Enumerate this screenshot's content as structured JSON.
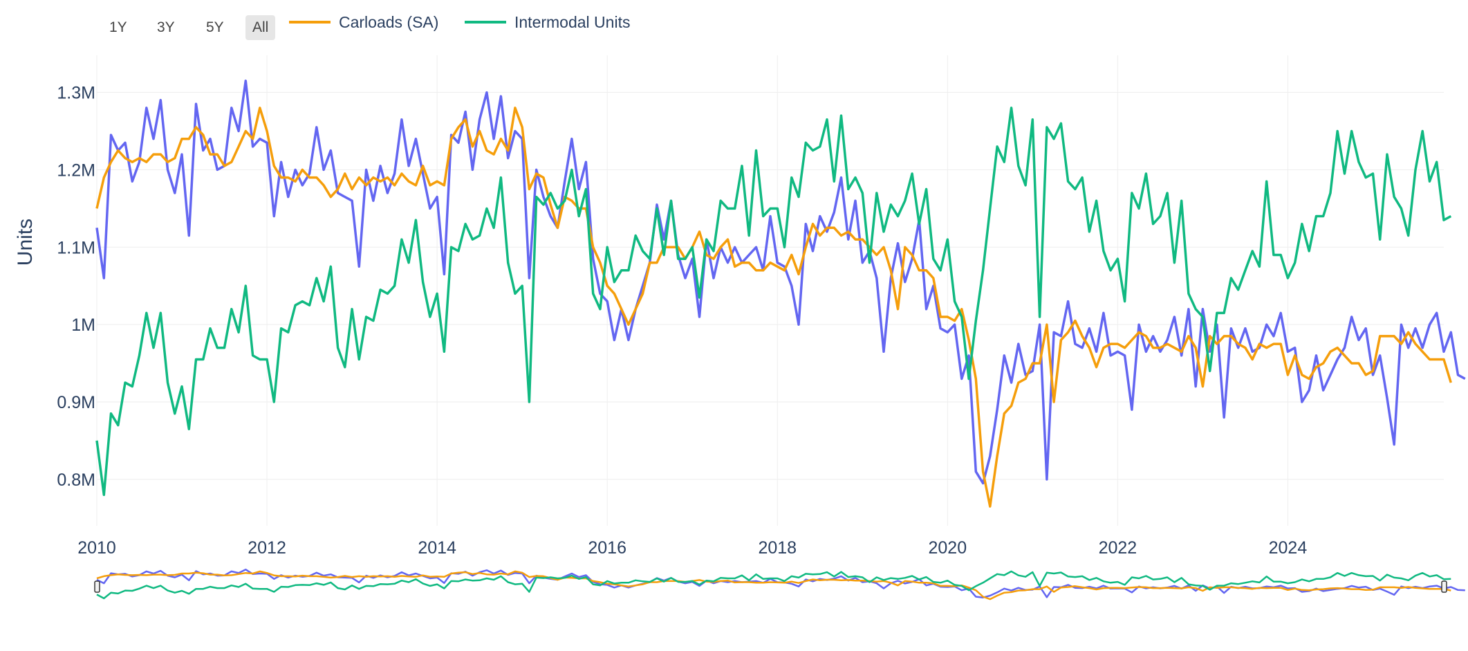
{
  "range_buttons": [
    {
      "label": "1Y",
      "active": false
    },
    {
      "label": "3Y",
      "active": false
    },
    {
      "label": "5Y",
      "active": false
    },
    {
      "label": "All",
      "active": true
    }
  ],
  "legend": [
    {
      "label": "Carloads (SA)",
      "color": "#f59e0b"
    },
    {
      "label": "Intermodal Units",
      "color": "#10b981"
    }
  ],
  "chart_data": {
    "type": "line",
    "ylabel": "Units",
    "xlabel": "",
    "grid": true,
    "legend_position": "top-left",
    "x_ticks": [
      "2010",
      "2012",
      "2014",
      "2016",
      "2018",
      "2020",
      "2022",
      "2024"
    ],
    "y_ticks": [
      "0.8M",
      "0.9M",
      "1M",
      "1.1M",
      "1.2M",
      "1.3M"
    ],
    "ylim": [
      0.74,
      1.33
    ],
    "xlim": [
      "2010-01",
      "2025-11"
    ],
    "x_start": "2010-01",
    "x_step": "1 month",
    "series": [
      {
        "name": "",
        "color": "#6366f1",
        "values": [
          1.125,
          1.06,
          1.245,
          1.225,
          1.235,
          1.185,
          1.21,
          1.28,
          1.24,
          1.29,
          1.2,
          1.17,
          1.22,
          1.115,
          1.285,
          1.225,
          1.24,
          1.2,
          1.205,
          1.28,
          1.25,
          1.315,
          1.23,
          1.24,
          1.235,
          1.14,
          1.21,
          1.165,
          1.2,
          1.18,
          1.195,
          1.255,
          1.2,
          1.225,
          1.17,
          1.165,
          1.16,
          1.075,
          1.2,
          1.16,
          1.205,
          1.17,
          1.195,
          1.265,
          1.205,
          1.24,
          1.195,
          1.15,
          1.165,
          1.065,
          1.245,
          1.235,
          1.275,
          1.2,
          1.265,
          1.3,
          1.24,
          1.295,
          1.215,
          1.25,
          1.24,
          1.06,
          1.2,
          1.165,
          1.14,
          1.125,
          1.185,
          1.24,
          1.175,
          1.21,
          1.085,
          1.04,
          1.03,
          0.98,
          1.02,
          0.98,
          1.02,
          1.05,
          1.08,
          1.155,
          1.11,
          1.16,
          1.09,
          1.06,
          1.085,
          1.01,
          1.11,
          1.06,
          1.1,
          1.08,
          1.1,
          1.08,
          1.09,
          1.1,
          1.07,
          1.14,
          1.08,
          1.075,
          1.05,
          1.0,
          1.13,
          1.095,
          1.14,
          1.12,
          1.145,
          1.19,
          1.11,
          1.16,
          1.08,
          1.095,
          1.06,
          0.965,
          1.06,
          1.105,
          1.055,
          1.085,
          1.135,
          1.02,
          1.05,
          0.995,
          0.99,
          1.0,
          0.93,
          0.96,
          0.81,
          0.795,
          0.83,
          0.89,
          0.96,
          0.925,
          0.975,
          0.935,
          0.94,
          1.0,
          0.8,
          0.99,
          0.985,
          1.03,
          0.975,
          0.97,
          0.995,
          0.965,
          1.015,
          0.96,
          0.965,
          0.96,
          0.89,
          1.0,
          0.965,
          0.985,
          0.965,
          0.98,
          1.01,
          0.96,
          1.02,
          0.92,
          1.02,
          0.965,
          1.0,
          0.88,
          0.995,
          0.97,
          0.995,
          0.965,
          0.97,
          1.0,
          0.985,
          1.015,
          0.965,
          0.97,
          0.9,
          0.915,
          0.96,
          0.915,
          0.935,
          0.955,
          0.97,
          1.01,
          0.98,
          0.995,
          0.935,
          0.96,
          0.905,
          0.845,
          1.0,
          0.97,
          0.995,
          0.97,
          1.0,
          1.015,
          0.965,
          0.99,
          0.935,
          0.93
        ]
      },
      {
        "name": "Carloads (SA)",
        "color": "#f59e0b",
        "values": [
          1.15,
          1.19,
          1.21,
          1.225,
          1.215,
          1.21,
          1.215,
          1.21,
          1.22,
          1.22,
          1.21,
          1.215,
          1.24,
          1.24,
          1.255,
          1.245,
          1.22,
          1.22,
          1.205,
          1.21,
          1.23,
          1.25,
          1.24,
          1.28,
          1.25,
          1.205,
          1.19,
          1.19,
          1.185,
          1.2,
          1.19,
          1.19,
          1.18,
          1.165,
          1.175,
          1.195,
          1.175,
          1.19,
          1.18,
          1.19,
          1.185,
          1.19,
          1.18,
          1.195,
          1.185,
          1.18,
          1.205,
          1.18,
          1.185,
          1.18,
          1.24,
          1.255,
          1.265,
          1.23,
          1.25,
          1.225,
          1.22,
          1.24,
          1.225,
          1.28,
          1.255,
          1.175,
          1.195,
          1.19,
          1.155,
          1.125,
          1.165,
          1.16,
          1.15,
          1.15,
          1.1,
          1.08,
          1.05,
          1.04,
          1.02,
          1.0,
          1.02,
          1.04,
          1.08,
          1.08,
          1.1,
          1.1,
          1.1,
          1.085,
          1.1,
          1.12,
          1.09,
          1.085,
          1.1,
          1.11,
          1.075,
          1.08,
          1.08,
          1.07,
          1.07,
          1.08,
          1.075,
          1.07,
          1.09,
          1.065,
          1.1,
          1.13,
          1.115,
          1.125,
          1.125,
          1.115,
          1.12,
          1.11,
          1.11,
          1.1,
          1.09,
          1.1,
          1.07,
          1.02,
          1.1,
          1.09,
          1.07,
          1.07,
          1.06,
          1.01,
          1.01,
          1.005,
          1.02,
          0.98,
          0.93,
          0.81,
          0.765,
          0.83,
          0.885,
          0.895,
          0.925,
          0.93,
          0.95,
          0.95,
          1.0,
          0.9,
          0.98,
          0.99,
          1.005,
          0.985,
          0.97,
          0.945,
          0.97,
          0.975,
          0.975,
          0.97,
          0.98,
          0.99,
          0.985,
          0.97,
          0.97,
          0.975,
          0.97,
          0.965,
          0.985,
          0.97,
          0.92,
          0.985,
          0.975,
          0.985,
          0.985,
          0.975,
          0.97,
          0.955,
          0.975,
          0.97,
          0.975,
          0.975,
          0.935,
          0.96,
          0.935,
          0.93,
          0.945,
          0.95,
          0.965,
          0.97,
          0.96,
          0.95,
          0.95,
          0.935,
          0.94,
          0.985,
          0.985,
          0.985,
          0.975,
          0.99,
          0.975,
          0.965,
          0.955,
          0.955,
          0.955,
          0.925
        ]
      },
      {
        "name": "Intermodal Units",
        "color": "#10b981",
        "values": [
          0.85,
          0.78,
          0.885,
          0.87,
          0.925,
          0.92,
          0.96,
          1.015,
          0.97,
          1.015,
          0.925,
          0.885,
          0.92,
          0.865,
          0.955,
          0.955,
          0.995,
          0.97,
          0.97,
          1.02,
          0.99,
          1.05,
          0.96,
          0.955,
          0.955,
          0.9,
          0.995,
          0.99,
          1.025,
          1.03,
          1.025,
          1.06,
          1.03,
          1.075,
          0.97,
          0.945,
          1.02,
          0.955,
          1.01,
          1.005,
          1.045,
          1.04,
          1.05,
          1.11,
          1.08,
          1.135,
          1.055,
          1.01,
          1.04,
          0.965,
          1.1,
          1.095,
          1.13,
          1.11,
          1.115,
          1.15,
          1.125,
          1.19,
          1.08,
          1.04,
          1.05,
          0.9,
          1.165,
          1.155,
          1.17,
          1.15,
          1.16,
          1.2,
          1.14,
          1.175,
          1.04,
          1.02,
          1.1,
          1.055,
          1.07,
          1.07,
          1.115,
          1.095,
          1.085,
          1.15,
          1.09,
          1.16,
          1.085,
          1.085,
          1.1,
          1.035,
          1.11,
          1.095,
          1.16,
          1.15,
          1.15,
          1.205,
          1.115,
          1.225,
          1.14,
          1.15,
          1.15,
          1.1,
          1.19,
          1.165,
          1.235,
          1.225,
          1.23,
          1.265,
          1.185,
          1.27,
          1.175,
          1.19,
          1.17,
          1.08,
          1.17,
          1.12,
          1.155,
          1.14,
          1.16,
          1.195,
          1.13,
          1.175,
          1.085,
          1.07,
          1.11,
          1.03,
          1.01,
          0.93,
          1.005,
          1.07,
          1.15,
          1.23,
          1.21,
          1.28,
          1.205,
          1.18,
          1.265,
          1.01,
          1.255,
          1.24,
          1.26,
          1.185,
          1.175,
          1.19,
          1.12,
          1.16,
          1.095,
          1.07,
          1.085,
          1.03,
          1.17,
          1.15,
          1.195,
          1.13,
          1.14,
          1.17,
          1.08,
          1.16,
          1.04,
          1.02,
          1.01,
          0.94,
          1.015,
          1.015,
          1.06,
          1.045,
          1.07,
          1.095,
          1.075,
          1.185,
          1.09,
          1.09,
          1.06,
          1.08,
          1.13,
          1.095,
          1.14,
          1.14,
          1.17,
          1.25,
          1.195,
          1.25,
          1.21,
          1.19,
          1.195,
          1.11,
          1.22,
          1.165,
          1.15,
          1.115,
          1.2,
          1.25,
          1.185,
          1.21,
          1.135,
          1.14
        ]
      }
    ]
  }
}
